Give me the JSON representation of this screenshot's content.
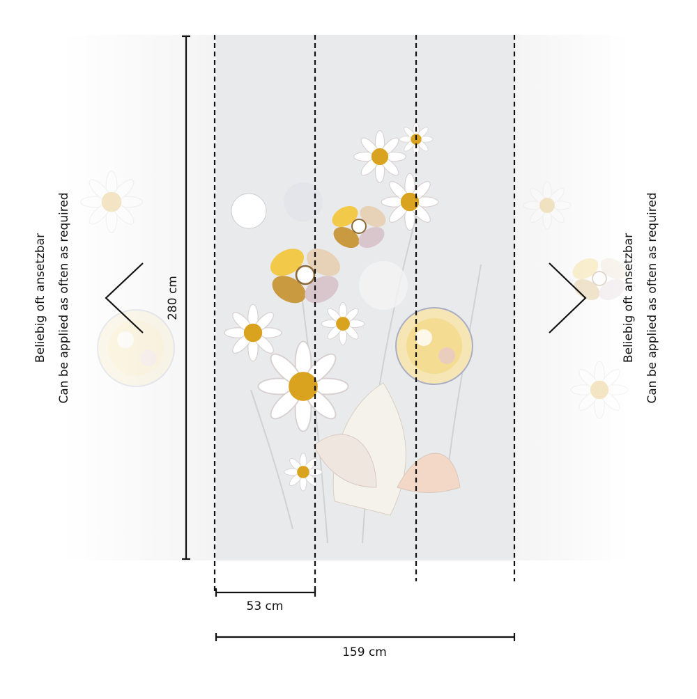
{
  "dimensions": {
    "height": "280 cm",
    "panel_width": "53 cm",
    "total_width": "159 cm"
  },
  "left_note": {
    "line1": "Beliebig oft ansetzbar",
    "line2": "Can be applied as often as required"
  },
  "right_note": {
    "line1": "Beliebig oft ansetzbar",
    "line2": "Can be applied as often as required"
  }
}
